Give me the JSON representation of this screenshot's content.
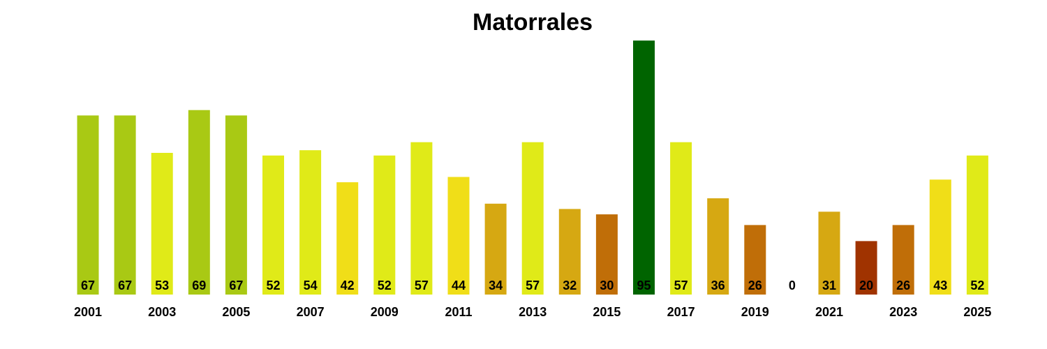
{
  "chart_data": {
    "type": "bar",
    "title": "Matorrales",
    "xlabel": "",
    "ylabel": "",
    "ylim": [
      0,
      95
    ],
    "grid": false,
    "legend": "none",
    "categories": [
      "2001",
      "2002",
      "2003",
      "2004",
      "2005",
      "2006",
      "2007",
      "2008",
      "2009",
      "2010",
      "2011",
      "2012",
      "2013",
      "2014",
      "2015",
      "2016",
      "2017",
      "2018",
      "2019",
      "2020",
      "2021",
      "2022",
      "2023",
      "2024",
      "2025"
    ],
    "tick_labels": [
      "2001",
      "",
      "2003",
      "",
      "2005",
      "",
      "2007",
      "",
      "2009",
      "",
      "2011",
      "",
      "2013",
      "",
      "2015",
      "",
      "2017",
      "",
      "2019",
      "",
      "2021",
      "",
      "2023",
      "",
      "2025"
    ],
    "values": [
      67,
      67,
      53,
      69,
      67,
      52,
      54,
      42,
      52,
      57,
      44,
      34,
      57,
      32,
      30,
      95,
      57,
      36,
      26,
      0,
      31,
      20,
      26,
      43,
      52
    ],
    "colors": [
      "#a9c914",
      "#a9c914",
      "#e0ea18",
      "#a9c914",
      "#a9c914",
      "#e0ea18",
      "#e0ea18",
      "#f0de18",
      "#e0ea18",
      "#e0ea18",
      "#f0de18",
      "#d6a812",
      "#e0ea18",
      "#d6a812",
      "#c06e08",
      "#006400",
      "#e0ea18",
      "#d6a812",
      "#c06e08",
      "#c06e08",
      "#d6a812",
      "#a03300",
      "#c06e08",
      "#f0de18",
      "#e0ea18"
    ]
  }
}
